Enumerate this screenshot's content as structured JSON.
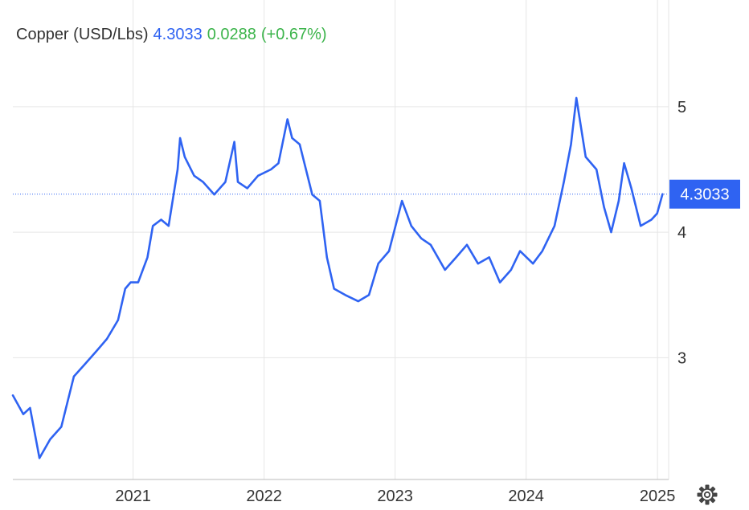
{
  "header": {
    "instrument": "Copper (USD/Lbs)",
    "price": "4.3033",
    "change": "0.0288",
    "change_pct": "(+0.67%)"
  },
  "colors": {
    "line": "#2f63f2",
    "grid": "#e6e6e6",
    "text": "#333333",
    "positive": "#3cb44b",
    "badge_bg": "#2f63f2",
    "badge_text": "#ffffff"
  },
  "icons": {
    "settings": "gear-icon"
  },
  "chart_data": {
    "type": "line",
    "title": "Copper (USD/Lbs)",
    "last_value": 4.3033,
    "last_label": "4.3033",
    "ylim": [
      2.03,
      5.85
    ],
    "yticks": [
      3,
      4,
      5
    ],
    "ytick_labels": [
      "3",
      "4",
      "5"
    ],
    "xlim": [
      "2020-02-01",
      "2025-02-01"
    ],
    "xticks": [
      "2021-01-01",
      "2022-01-01",
      "2023-01-01",
      "2024-01-01",
      "2025-01-01"
    ],
    "xtick_labels": [
      "2021",
      "2022",
      "2023",
      "2024",
      "2025"
    ],
    "grid": true,
    "series": [
      {
        "x": [
          "2020-02-01",
          "2020-03-01",
          "2020-03-20",
          "2020-04-15",
          "2020-05-15",
          "2020-06-15",
          "2020-07-20",
          "2020-08-20",
          "2020-09-20",
          "2020-10-20",
          "2020-11-20",
          "2020-12-10",
          "2020-12-25",
          "2021-01-15",
          "2021-02-10",
          "2021-02-25",
          "2021-03-20",
          "2021-04-10",
          "2021-05-05",
          "2021-05-12",
          "2021-05-25",
          "2021-06-20",
          "2021-07-15",
          "2021-08-15",
          "2021-09-15",
          "2021-10-10",
          "2021-10-20",
          "2021-11-15",
          "2021-12-15",
          "2022-01-20",
          "2022-02-10",
          "2022-03-07",
          "2022-03-20",
          "2022-04-10",
          "2022-05-15",
          "2022-06-05",
          "2022-06-25",
          "2022-07-15",
          "2022-08-15",
          "2022-09-20",
          "2022-10-20",
          "2022-11-15",
          "2022-12-15",
          "2023-01-20",
          "2023-02-15",
          "2023-03-15",
          "2023-04-10",
          "2023-05-20",
          "2023-06-20",
          "2023-07-20",
          "2023-08-20",
          "2023-09-20",
          "2023-10-20",
          "2023-11-20",
          "2023-12-15",
          "2024-01-20",
          "2024-02-15",
          "2024-03-20",
          "2024-04-15",
          "2024-05-05",
          "2024-05-20",
          "2024-06-15",
          "2024-07-15",
          "2024-08-05",
          "2024-08-25",
          "2024-09-15",
          "2024-09-30",
          "2024-10-20",
          "2024-11-15",
          "2024-12-15",
          "2024-12-31",
          "2025-01-15"
        ],
        "y": [
          2.7,
          2.55,
          2.6,
          2.2,
          2.35,
          2.45,
          2.85,
          2.95,
          3.05,
          3.15,
          3.3,
          3.55,
          3.6,
          3.6,
          3.8,
          4.05,
          4.1,
          4.05,
          4.5,
          4.75,
          4.6,
          4.45,
          4.4,
          4.3,
          4.4,
          4.72,
          4.4,
          4.35,
          4.45,
          4.5,
          4.55,
          4.9,
          4.75,
          4.7,
          4.3,
          4.25,
          3.8,
          3.55,
          3.5,
          3.45,
          3.5,
          3.75,
          3.85,
          4.25,
          4.05,
          3.95,
          3.9,
          3.7,
          3.8,
          3.9,
          3.75,
          3.8,
          3.6,
          3.7,
          3.85,
          3.75,
          3.85,
          4.05,
          4.4,
          4.7,
          5.07,
          4.6,
          4.5,
          4.2,
          4.0,
          4.25,
          4.55,
          4.35,
          4.05,
          4.1,
          4.15,
          4.3033
        ]
      }
    ]
  }
}
